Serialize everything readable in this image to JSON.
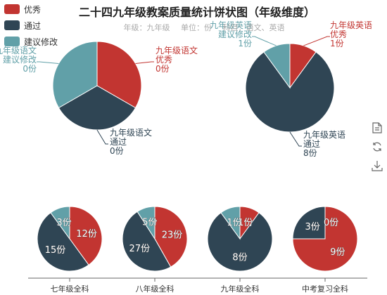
{
  "title": "二十四九年级教案质量统计饼状图（年级维度）",
  "subtitle": {
    "grade": "年级：九年级",
    "unit": "单位：份",
    "subjects": "科目：语文、英语"
  },
  "legend": [
    {
      "name": "优秀",
      "color": "#c23531"
    },
    {
      "name": "通过",
      "color": "#2f4554"
    },
    {
      "name": "建议修改",
      "color": "#61a0a8"
    }
  ],
  "toolbox": [
    {
      "name": "data-view-icon"
    },
    {
      "name": "restore-icon"
    },
    {
      "name": "save-image-icon"
    }
  ],
  "chart_data": [
    {
      "type": "pie",
      "name": "九年级语文",
      "categories": [
        "优秀",
        "通过",
        "建议修改"
      ],
      "values": [
        0,
        0,
        0
      ],
      "labels": [
        [
          "九年级语文",
          "优秀",
          "0份"
        ],
        [
          "九年级语文",
          "通过",
          "0份"
        ],
        [
          "九年级语文",
          "建议修改",
          "0份"
        ]
      ]
    },
    {
      "type": "pie",
      "name": "九年级英语",
      "categories": [
        "优秀",
        "通过",
        "建议修改"
      ],
      "values": [
        1,
        8,
        1
      ],
      "labels": [
        [
          "九年级英语",
          "优秀",
          "1份"
        ],
        [
          "九年级英语",
          "通过",
          "8份"
        ],
        [
          "九年级英语",
          "建议修改",
          "1份"
        ]
      ]
    },
    {
      "type": "pie",
      "name": "七年级全科",
      "categories": [
        "优秀",
        "通过",
        "建议修改"
      ],
      "values": [
        12,
        15,
        3
      ],
      "value_labels": [
        "12份",
        "15份",
        "3份"
      ]
    },
    {
      "type": "pie",
      "name": "八年级全科",
      "categories": [
        "优秀",
        "通过",
        "建议修改"
      ],
      "values": [
        23,
        27,
        5
      ],
      "value_labels": [
        "23份",
        "27份",
        "5份"
      ]
    },
    {
      "type": "pie",
      "name": "九年级全科",
      "categories": [
        "优秀",
        "通过",
        "建议修改"
      ],
      "values": [
        1,
        8,
        1
      ],
      "value_labels": [
        "1份",
        "8份",
        "1份"
      ]
    },
    {
      "type": "pie",
      "name": "中考复习全科",
      "categories": [
        "优秀",
        "通过",
        "建议修改"
      ],
      "values": [
        9,
        3,
        0
      ],
      "value_labels": [
        "9份",
        "3份",
        "0份"
      ]
    }
  ]
}
